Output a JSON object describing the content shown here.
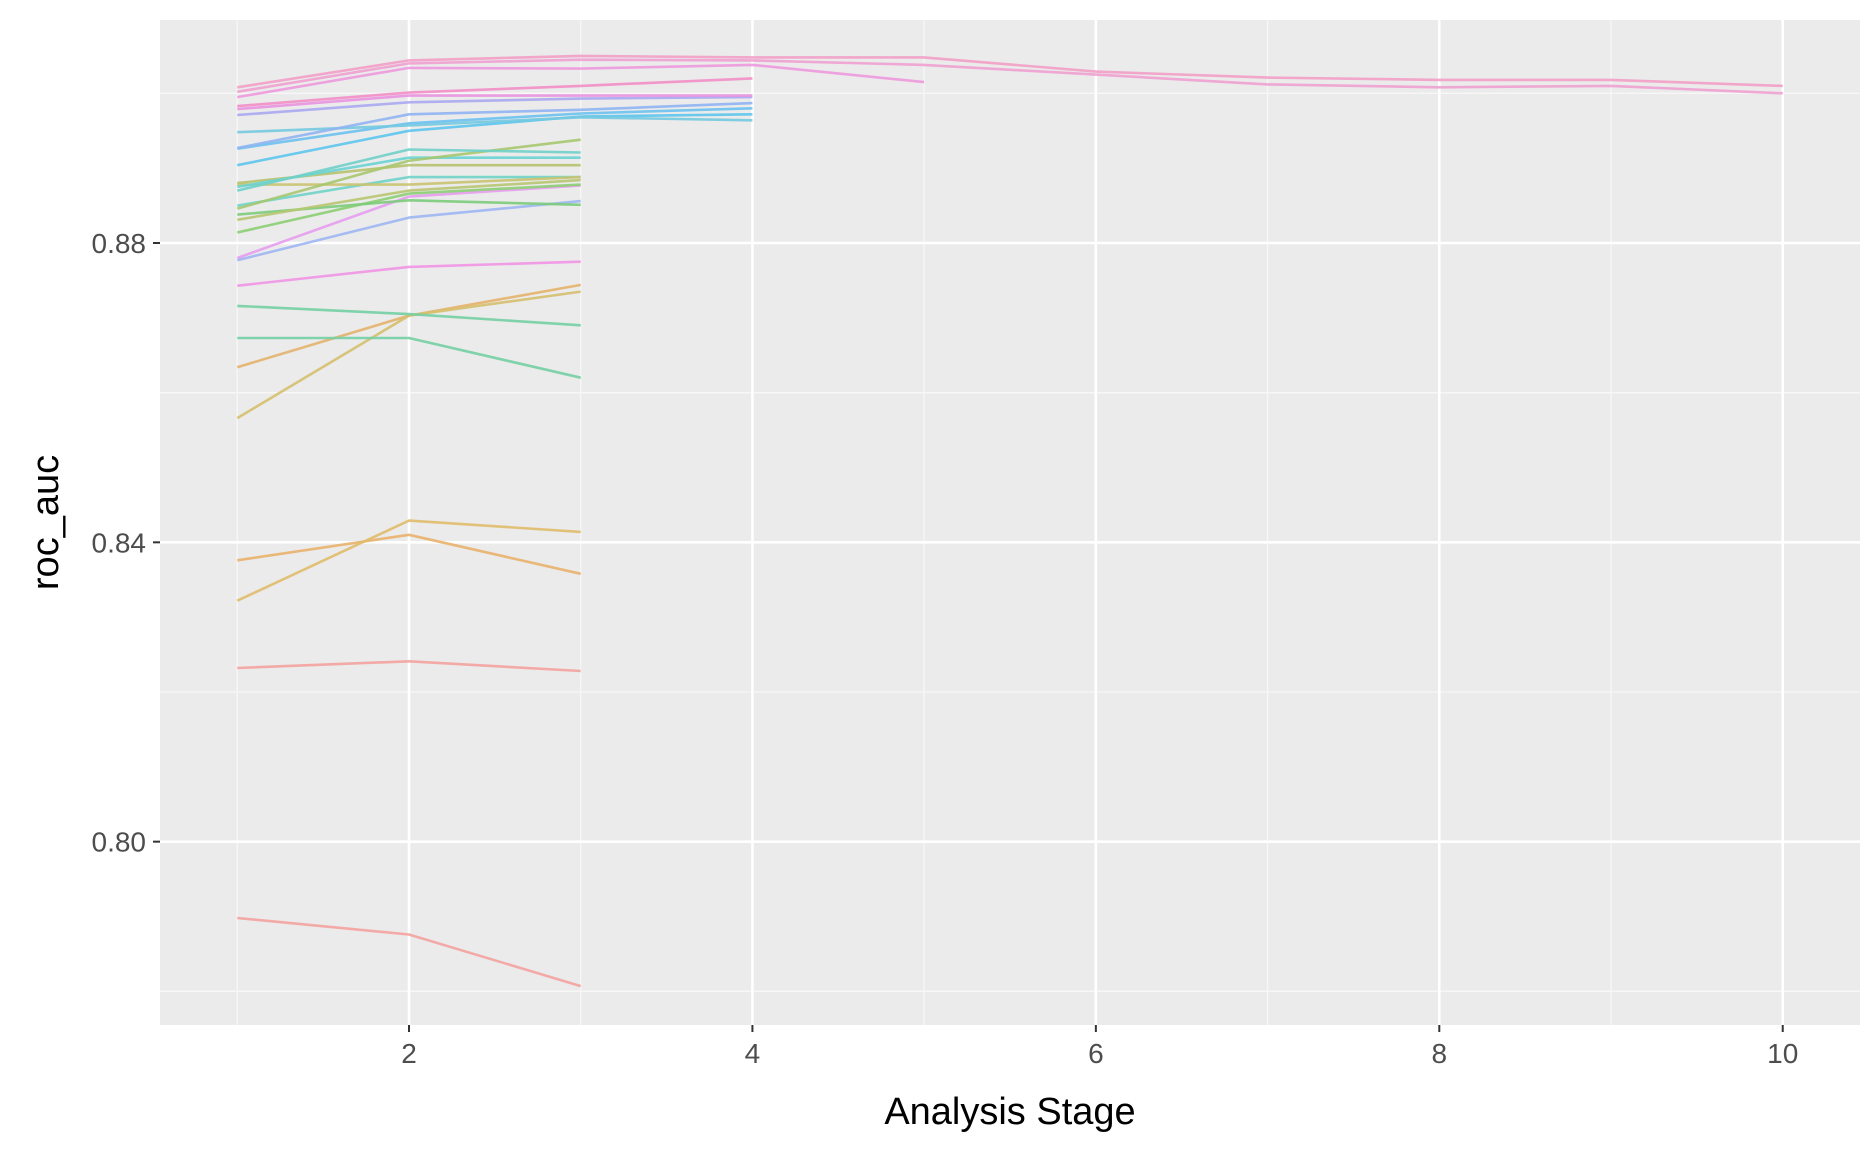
{
  "chart_data": {
    "type": "line",
    "xlabel": "Analysis Stage",
    "ylabel": "roc_auc",
    "xlim": [
      0.55,
      10.45
    ],
    "ylim": [
      0.7755,
      0.9098
    ],
    "x_ticks": [
      2,
      4,
      6,
      8,
      10
    ],
    "y_ticks": [
      0.8,
      0.84,
      0.88
    ],
    "grid": true,
    "legend": "none",
    "colors": {
      "panel_bg": "#ebebeb",
      "grid_major": "#ffffff",
      "grid_minor": "#f7f7f7",
      "tick_text": "#4d4d4d",
      "axis_title": "#000000"
    },
    "series": [
      {
        "color": "#f4a3a0",
        "x": [
          1,
          2,
          3
        ],
        "y": [
          0.7898,
          0.7876,
          0.7807
        ]
      },
      {
        "color": "#f4a3a0",
        "x": [
          1,
          2,
          3
        ],
        "y": [
          0.8232,
          0.8241,
          0.8228
        ]
      },
      {
        "color": "#e9b16a",
        "x": [
          1,
          2,
          3
        ],
        "y": [
          0.8376,
          0.841,
          0.8358
        ]
      },
      {
        "color": "#e0bc6a",
        "x": [
          1,
          2,
          3
        ],
        "y": [
          0.8322,
          0.8429,
          0.8414
        ]
      },
      {
        "color": "#e4b36c",
        "x": [
          1,
          2,
          3
        ],
        "y": [
          0.8634,
          0.8703,
          0.8744
        ]
      },
      {
        "color": "#d5c06e",
        "x": [
          1,
          2,
          3
        ],
        "y": [
          0.8566,
          0.8703,
          0.8735
        ]
      },
      {
        "color": "#74cfa3",
        "x": [
          1,
          2,
          3
        ],
        "y": [
          0.8716,
          0.8705,
          0.869
        ]
      },
      {
        "color": "#74cfa3",
        "x": [
          1,
          2,
          3
        ],
        "y": [
          0.8673,
          0.8673,
          0.862
        ]
      },
      {
        "color": "#f195e6",
        "x": [
          1,
          2,
          3
        ],
        "y": [
          0.8743,
          0.8768,
          0.8775
        ]
      },
      {
        "color": "#e79cf0",
        "x": [
          1,
          2,
          3
        ],
        "y": [
          0.878,
          0.8862,
          0.8877
        ]
      },
      {
        "color": "#9fb6f2",
        "x": [
          1,
          2,
          3
        ],
        "y": [
          0.8777,
          0.8834,
          0.8856
        ]
      },
      {
        "color": "#8ccf73",
        "x": [
          1,
          2,
          3
        ],
        "y": [
          0.8814,
          0.8866,
          0.8878
        ]
      },
      {
        "color": "#7ccc7c",
        "x": [
          1,
          2,
          3
        ],
        "y": [
          0.8838,
          0.8857,
          0.8851
        ]
      },
      {
        "color": "#b8c771",
        "x": [
          1,
          2,
          3
        ],
        "y": [
          0.8831,
          0.887,
          0.8884
        ]
      },
      {
        "color": "#6fd3c8",
        "x": [
          1,
          2,
          3
        ],
        "y": [
          0.885,
          0.8888,
          0.8888
        ]
      },
      {
        "color": "#c9c370",
        "x": [
          1,
          2,
          3
        ],
        "y": [
          0.8878,
          0.8878,
          0.8888
        ]
      },
      {
        "color": "#b7c26f",
        "x": [
          1,
          2,
          3
        ],
        "y": [
          0.888,
          0.8904,
          0.8904
        ]
      },
      {
        "color": "#69d3d3",
        "x": [
          1,
          2,
          3
        ],
        "y": [
          0.8875,
          0.8914,
          0.8914
        ]
      },
      {
        "color": "#a6c86f",
        "x": [
          1,
          2,
          3
        ],
        "y": [
          0.8846,
          0.891,
          0.8938
        ]
      },
      {
        "color": "#6fd0c8",
        "x": [
          1,
          2,
          3
        ],
        "y": [
          0.887,
          0.8925,
          0.8921
        ]
      },
      {
        "color": "#5cc5ec",
        "x": [
          1,
          2,
          3,
          4
        ],
        "y": [
          0.8904,
          0.895,
          0.8969,
          0.8972
        ]
      },
      {
        "color": "#6cc2f0",
        "x": [
          1,
          2,
          3,
          4
        ],
        "y": [
          0.8926,
          0.896,
          0.8973,
          0.898
        ]
      },
      {
        "color": "#74c9e0",
        "x": [
          1,
          2,
          3,
          4
        ],
        "y": [
          0.8948,
          0.8957,
          0.8968,
          0.8964
        ]
      },
      {
        "color": "#8fb4f2",
        "x": [
          1,
          2,
          3,
          4
        ],
        "y": [
          0.8927,
          0.8972,
          0.8978,
          0.8987
        ]
      },
      {
        "color": "#aaa9ef",
        "x": [
          1,
          2,
          3,
          4
        ],
        "y": [
          0.8971,
          0.8988,
          0.8993,
          0.8995
        ]
      },
      {
        "color": "#e994e0",
        "x": [
          1,
          2,
          3,
          4
        ],
        "y": [
          0.8979,
          0.8997,
          0.8997,
          0.8997
        ]
      },
      {
        "color": "#f28ec7",
        "x": [
          1,
          2,
          3,
          4
        ],
        "y": [
          0.8983,
          0.9001,
          0.901,
          0.902
        ]
      },
      {
        "color": "#ee99de",
        "x": [
          1,
          2,
          3,
          4,
          5
        ],
        "y": [
          0.8995,
          0.9034,
          0.9033,
          0.9038,
          0.9015
        ]
      },
      {
        "color": "#f29fc7",
        "x": [
          1,
          2,
          3,
          4,
          5,
          6,
          7,
          8,
          9,
          10
        ],
        "y": [
          0.9008,
          0.9044,
          0.905,
          0.9048,
          0.9048,
          0.9029,
          0.9021,
          0.9018,
          0.9018,
          0.901
        ]
      },
      {
        "color": "#f0a0d0",
        "x": [
          1,
          2,
          3,
          4,
          5,
          6,
          7,
          8,
          9,
          10
        ],
        "y": [
          0.9002,
          0.904,
          0.9045,
          0.9044,
          0.9038,
          0.9025,
          0.9012,
          0.9008,
          0.901,
          0.9
        ]
      }
    ]
  }
}
